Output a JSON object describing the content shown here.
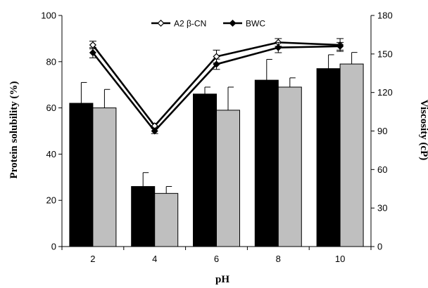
{
  "chart_data": {
    "type": "bar",
    "x": [
      2,
      4,
      6,
      8,
      10
    ],
    "xlabel": "pH",
    "ylabel": "Protein solubility (%)",
    "ylim": [
      0,
      100
    ],
    "yticks": [
      0,
      20,
      40,
      60,
      80,
      100
    ],
    "y2label": "Viscosity (cP)",
    "y2lim": [
      0,
      180
    ],
    "y2ticks": [
      0,
      30,
      60,
      90,
      120,
      150,
      180
    ],
    "bar_series": [
      {
        "values": [
          62,
          26,
          66,
          72,
          77
        ],
        "errors": [
          9,
          6,
          3,
          9,
          6
        ],
        "color": "#000000"
      },
      {
        "values": [
          60,
          23,
          59,
          69,
          79
        ],
        "errors": [
          8,
          3,
          10,
          4,
          5
        ],
        "color": "#bfbfbf"
      }
    ],
    "line_series": [
      {
        "name": "A2 β-CN",
        "marker": "open-diamond",
        "axis": "right",
        "values": [
          157,
          94,
          148,
          159,
          157
        ],
        "errors": [
          3,
          2,
          5,
          3,
          5
        ]
      },
      {
        "name": "BWC",
        "marker": "filled-diamond",
        "axis": "right",
        "values": [
          151,
          90,
          142,
          155,
          156
        ],
        "errors": [
          4,
          2,
          4,
          4,
          3
        ]
      }
    ],
    "legend": "top-center",
    "grid": false
  }
}
